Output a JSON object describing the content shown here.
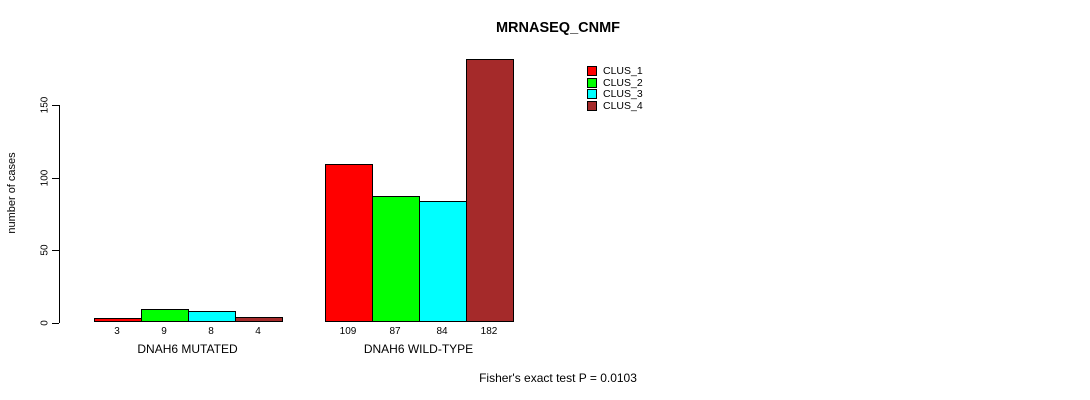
{
  "title": "MRNASEQ_CNMF",
  "footer": "Fisher's exact test P = 0.0103",
  "chart_data": {
    "type": "bar",
    "title": "MRNASEQ_CNMF",
    "xlabel": "",
    "ylabel": "number of cases",
    "categories": [
      "DNAH6 MUTATED",
      "DNAH6 WILD-TYPE"
    ],
    "series": [
      {
        "name": "CLUS_1",
        "color": "#ff0000",
        "values": [
          3,
          109
        ]
      },
      {
        "name": "CLUS_2",
        "color": "#00ff00",
        "values": [
          9,
          87
        ]
      },
      {
        "name": "CLUS_3",
        "color": "#00ffff",
        "values": [
          8,
          84
        ]
      },
      {
        "name": "CLUS_4",
        "color": "#a52a2a",
        "values": [
          4,
          182
        ]
      }
    ],
    "yticks": [
      0,
      50,
      100,
      150
    ],
    "ylim": [
      0,
      150
    ],
    "bar_value_labels": true,
    "grid": false,
    "legend_position": "top-right",
    "annotation": "Fisher's exact test P = 0.0103"
  }
}
